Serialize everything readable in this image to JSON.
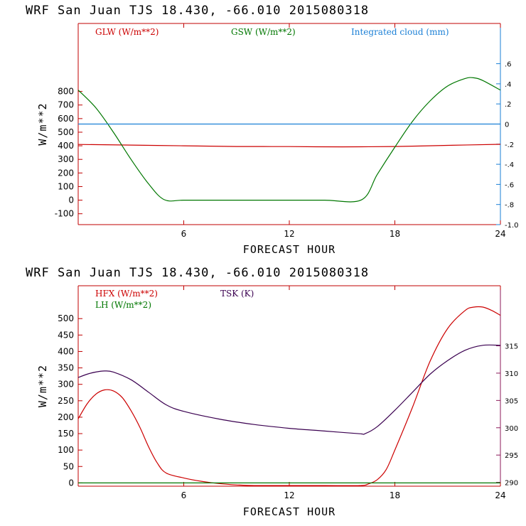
{
  "chart_data": [
    {
      "type": "line",
      "title": "WRF  San Juan TJS  18.430, -66.010  2015080318",
      "xlabel": "FORECAST HOUR",
      "ylabel": "W/m**2",
      "xlim": [
        0,
        24
      ],
      "ylim": [
        -180,
        1300
      ],
      "x_ticks": [
        6,
        12,
        18,
        24
      ],
      "y_ticks": [
        -100,
        0,
        100,
        200,
        300,
        400,
        500,
        600,
        700,
        800
      ],
      "y2lim": [
        -1.0,
        1.0
      ],
      "y2_ticks": [
        -1.0,
        -0.8,
        -0.6,
        -0.4,
        -0.2,
        0,
        0.2,
        0.4,
        0.6
      ],
      "y2_tick_labels": [
        "-1.0",
        "-.8",
        "-.6",
        "-.4",
        "-.2",
        "0",
        ".2",
        ".4",
        ".6"
      ],
      "series": [
        {
          "name": "GLW (W/m**2)",
          "color": "#cc0000",
          "axis": "left",
          "x": [
            0,
            3,
            6,
            9,
            12,
            15,
            18,
            21,
            24
          ],
          "y": [
            410,
            405,
            400,
            395,
            394,
            392,
            395,
            403,
            411
          ]
        },
        {
          "name": "GSW (W/m**2)",
          "color": "#007700",
          "axis": "left",
          "x": [
            0,
            1,
            2,
            3,
            4,
            4.9,
            6,
            8,
            10,
            12,
            14,
            16.1,
            17,
            18,
            19,
            20,
            21,
            22,
            22.5,
            23,
            24
          ],
          "y": [
            810,
            680,
            500,
            300,
            120,
            3,
            0,
            0,
            0,
            0,
            0,
            2,
            190,
            390,
            580,
            730,
            840,
            895,
            900,
            880,
            810
          ]
        },
        {
          "name": "Integrated cloud (mm)",
          "color": "#1a7fd6",
          "axis": "right",
          "x": [
            0,
            24
          ],
          "y": [
            0,
            0
          ]
        }
      ]
    },
    {
      "type": "line",
      "title": "WRF  San Juan TJS  18.430, -66.010  2015080318",
      "xlabel": "FORECAST HOUR",
      "ylabel": "W/m**2",
      "xlim": [
        0,
        24
      ],
      "ylim": [
        -10,
        600
      ],
      "x_ticks": [
        6,
        12,
        18,
        24
      ],
      "y_ticks": [
        0,
        50,
        100,
        150,
        200,
        250,
        300,
        350,
        400,
        450,
        500
      ],
      "y2lim": [
        289.3,
        326
      ],
      "y2_ticks": [
        290,
        295,
        300,
        305,
        310,
        315
      ],
      "series": [
        {
          "name": "HFX (W/m**2)",
          "color": "#cc0000",
          "axis": "left",
          "x": [
            0,
            0.5,
            1,
            1.5,
            2,
            2.5,
            3,
            3.5,
            4,
            4.5,
            5,
            6,
            7,
            8,
            9,
            10,
            12,
            14,
            16,
            16.5,
            17,
            17.5,
            18,
            19,
            20,
            21,
            22,
            22.5,
            23,
            23.5,
            24
          ],
          "y": [
            195,
            240,
            270,
            283,
            280,
            260,
            220,
            170,
            110,
            60,
            30,
            15,
            5,
            -2,
            -6,
            -8,
            -8,
            -8,
            -8,
            -3,
            10,
            40,
            100,
            230,
            370,
            470,
            525,
            535,
            535,
            525,
            510
          ]
        },
        {
          "name": "LH (W/m**2)",
          "color": "#007700",
          "axis": "left",
          "x": [
            0,
            24
          ],
          "y": [
            0,
            0
          ]
        },
        {
          "name": "TSK (K)",
          "color": "#3a0050",
          "axis": "right",
          "x": [
            0,
            0.5,
            1,
            1.5,
            2,
            3,
            4,
            5,
            6,
            8,
            10,
            12,
            14,
            16,
            16.3,
            17,
            18,
            19,
            20,
            21,
            22,
            23,
            24
          ],
          "y": [
            309.2,
            309.8,
            310.2,
            310.4,
            310.2,
            308.8,
            306.5,
            304.2,
            303.0,
            301.6,
            300.6,
            299.9,
            299.4,
            298.9,
            298.9,
            300.2,
            303.2,
            306.5,
            309.8,
            312.3,
            314.2,
            315.1,
            315.1
          ]
        }
      ]
    }
  ]
}
